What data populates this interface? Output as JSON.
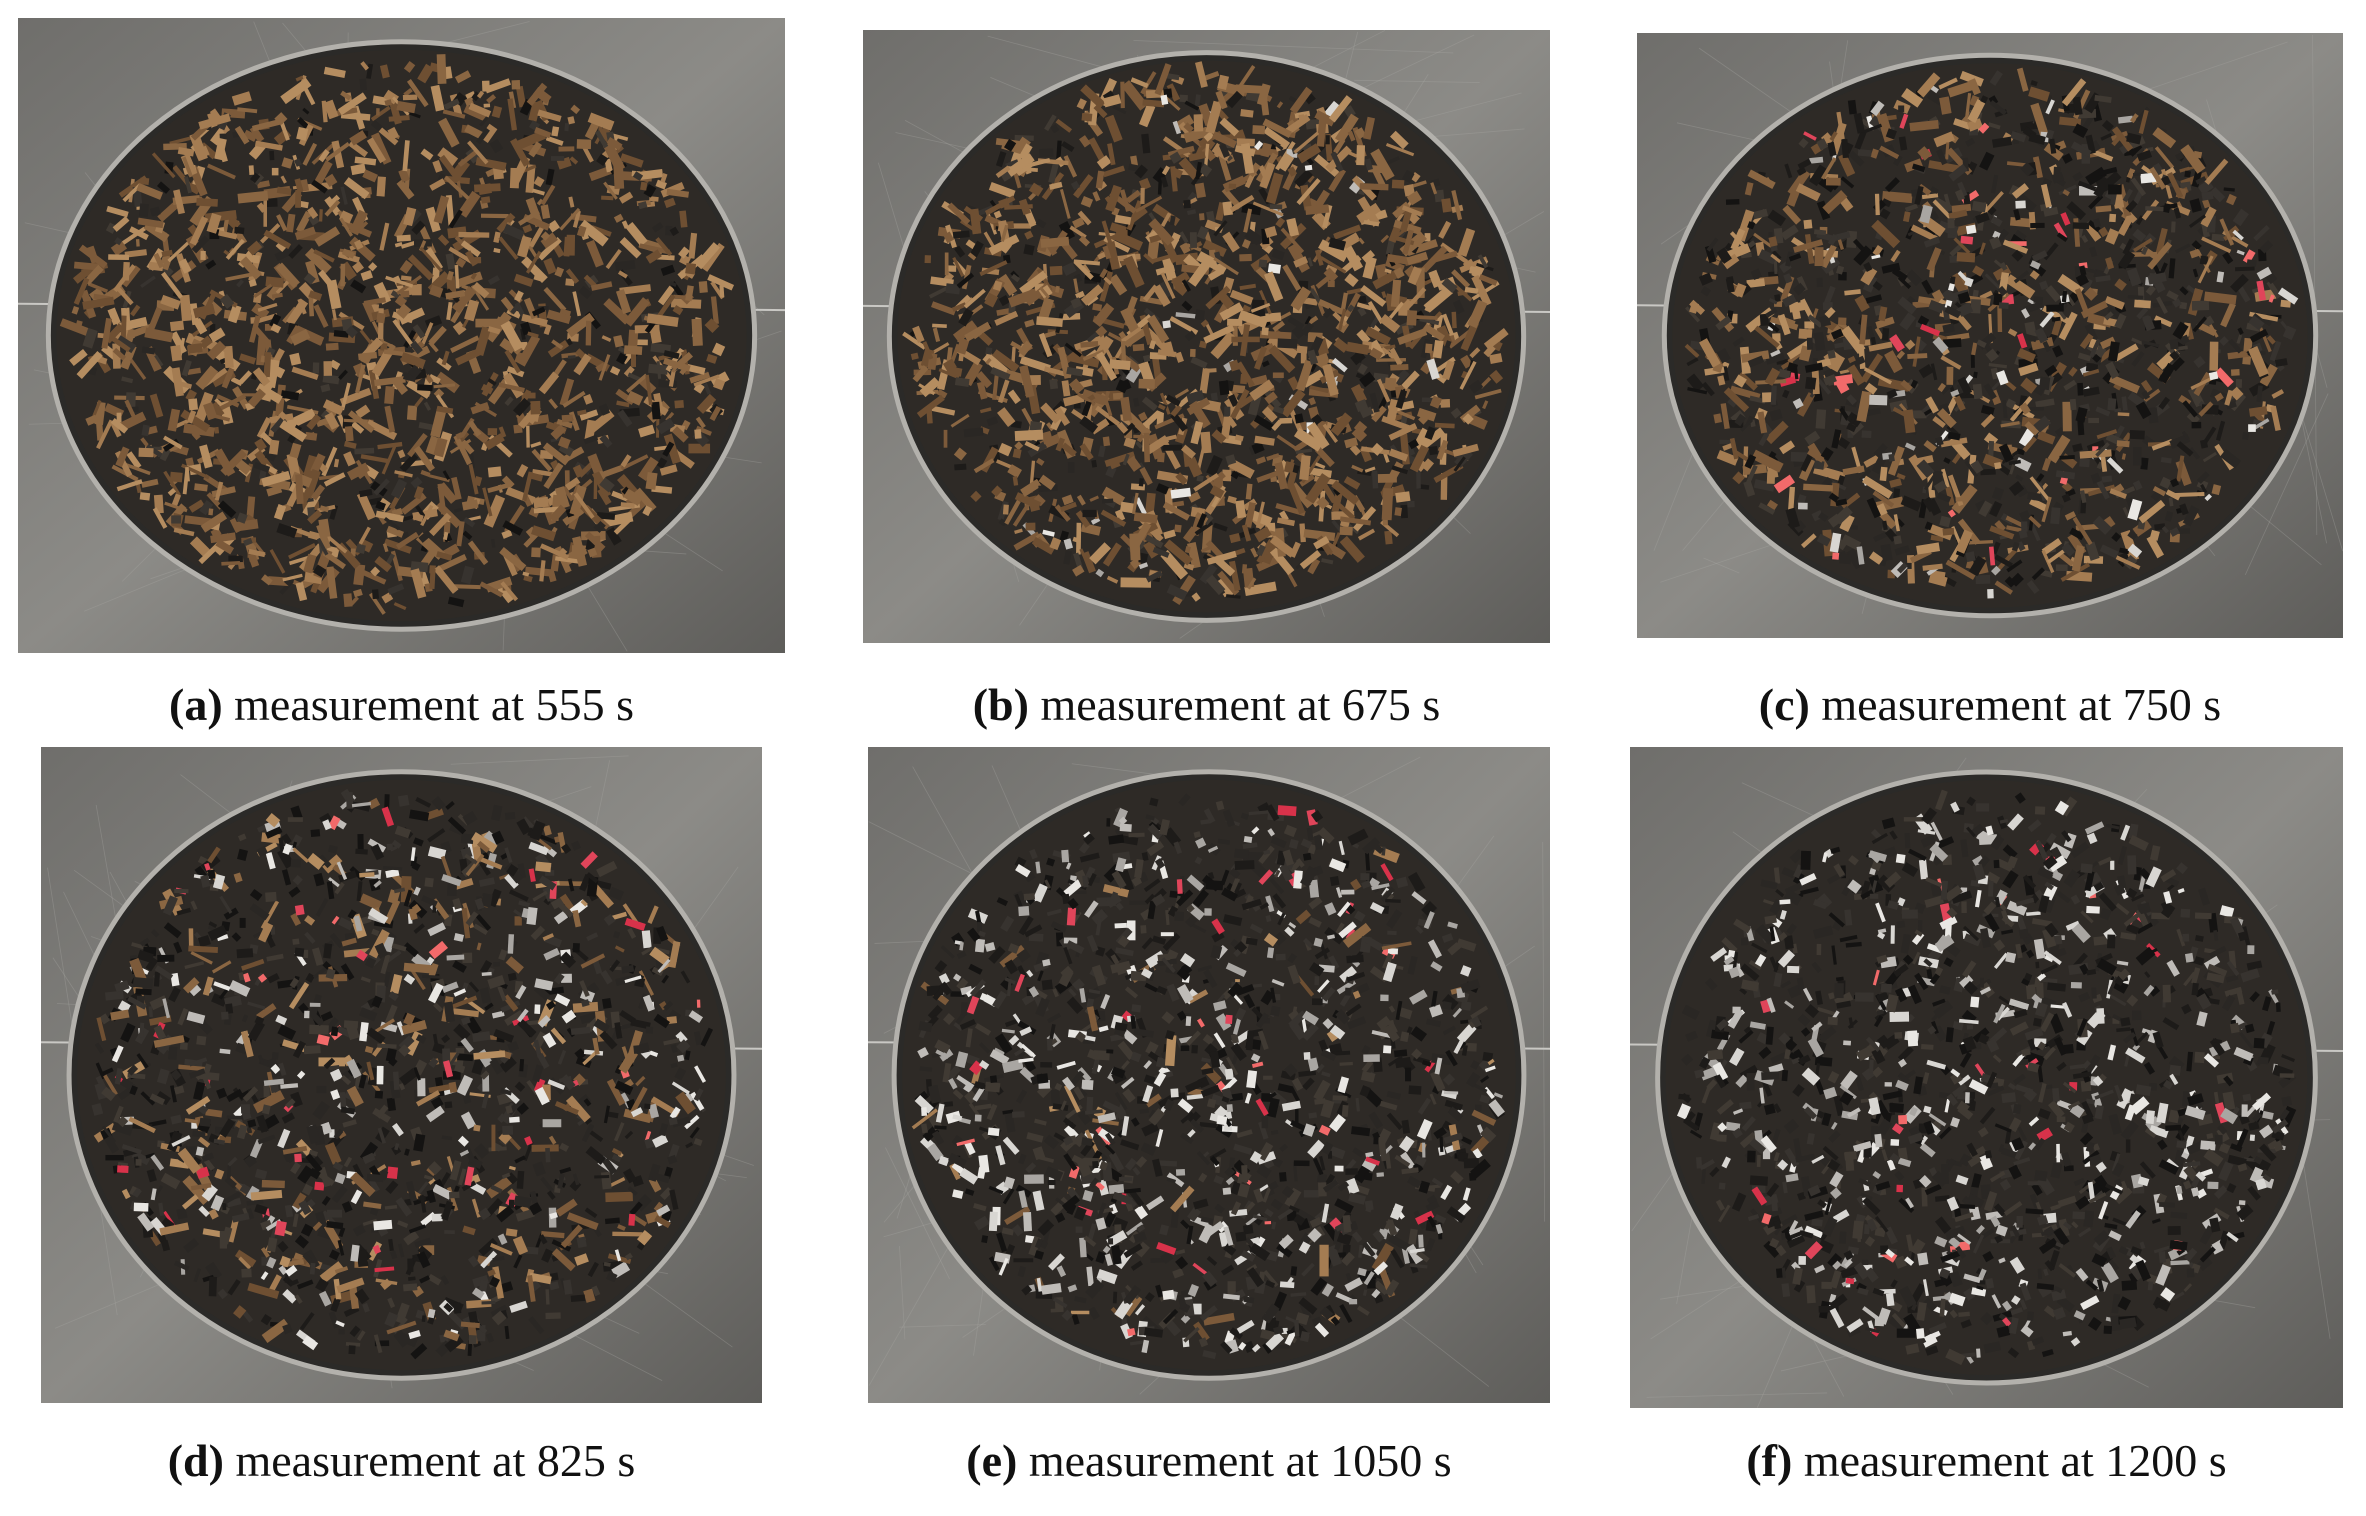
{
  "figure": {
    "panels": [
      {
        "label": "(a)",
        "text": "measurement at 555 s"
      },
      {
        "label": "(b)",
        "text": "measurement at 675 s"
      },
      {
        "label": "(c)",
        "text": "measurement at 750 s"
      },
      {
        "label": "(d)",
        "text": "measurement at 825 s"
      },
      {
        "label": "(e)",
        "text": "measurement at 1050 s"
      },
      {
        "label": "(f)",
        "text": "measurement at 1200 s"
      }
    ]
  }
}
